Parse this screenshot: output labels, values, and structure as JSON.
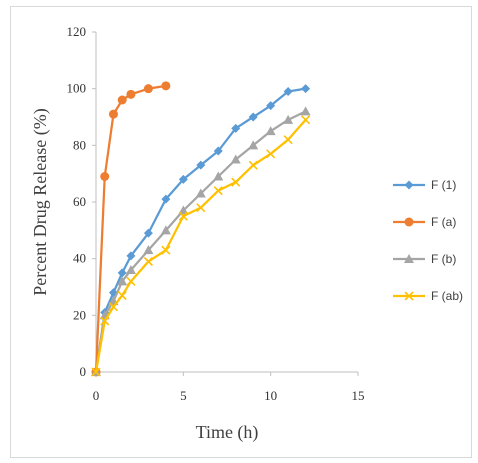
{
  "chart_data": {
    "type": "line",
    "title": "",
    "xlabel": "Time (h)",
    "ylabel": "Percent Drug Release (%)",
    "xlim": [
      0,
      15
    ],
    "ylim": [
      0,
      120
    ],
    "x_ticks": [
      0,
      5,
      10,
      15
    ],
    "y_ticks": [
      0,
      20,
      40,
      60,
      80,
      100,
      120
    ],
    "grid": false,
    "legend_position": "right",
    "series": [
      {
        "name": "F (1)",
        "color": "#5B9BD5",
        "marker": "diamond",
        "x": [
          0,
          0.5,
          1,
          1.5,
          2,
          3,
          4,
          5,
          6,
          7,
          8,
          9,
          10,
          11,
          12
        ],
        "y": [
          0,
          21,
          28,
          35,
          41,
          49,
          61,
          68,
          73,
          78,
          86,
          90,
          94,
          99,
          100
        ]
      },
      {
        "name": "F (a)",
        "color": "#ED7D31",
        "marker": "circle",
        "x": [
          0,
          0.5,
          1,
          1.5,
          2,
          3,
          4
        ],
        "y": [
          0,
          69,
          91,
          96,
          98,
          100,
          101
        ]
      },
      {
        "name": "F (b)",
        "color": "#A5A5A5",
        "marker": "triangle",
        "x": [
          0,
          0.5,
          1,
          1.5,
          2,
          3,
          4,
          5,
          6,
          7,
          8,
          9,
          10,
          11,
          12
        ],
        "y": [
          0,
          20,
          25,
          32,
          36,
          43,
          50,
          57,
          63,
          69,
          75,
          80,
          85,
          89,
          92
        ]
      },
      {
        "name": "F (ab)",
        "color": "#FFC000",
        "marker": "x",
        "x": [
          0,
          0.5,
          1,
          1.5,
          2,
          3,
          4,
          5,
          6,
          7,
          8,
          9,
          10,
          11,
          12
        ],
        "y": [
          0,
          18,
          23,
          27,
          32,
          39,
          43,
          55,
          58,
          64,
          67,
          73,
          77,
          82,
          89
        ]
      }
    ]
  }
}
